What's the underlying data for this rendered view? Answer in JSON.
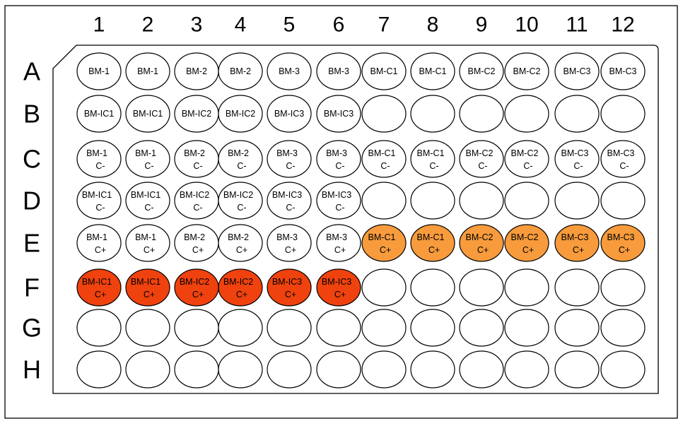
{
  "columns": [
    "1",
    "2",
    "3",
    "4",
    "5",
    "6",
    "7",
    "8",
    "9",
    "10",
    "11",
    "12"
  ],
  "rows": [
    "A",
    "B",
    "C",
    "D",
    "E",
    "F",
    "G",
    "H"
  ],
  "colors": {
    "empty": "#ffffff",
    "orange": "#f79b3c",
    "red": "#f0420e",
    "outline": "#000000"
  },
  "wells": [
    [
      {
        "l1": "BM-1",
        "l2": ""
      },
      {
        "l1": "BM-1",
        "l2": ""
      },
      {
        "l1": "BM-2",
        "l2": ""
      },
      {
        "l1": "BM-2",
        "l2": ""
      },
      {
        "l1": "BM-3",
        "l2": ""
      },
      {
        "l1": "BM-3",
        "l2": ""
      },
      {
        "l1": "BM-C1",
        "l2": ""
      },
      {
        "l1": "BM-C1",
        "l2": ""
      },
      {
        "l1": "BM-C2",
        "l2": ""
      },
      {
        "l1": "BM-C2",
        "l2": ""
      },
      {
        "l1": "BM-C3",
        "l2": ""
      },
      {
        "l1": "BM-C3",
        "l2": ""
      }
    ],
    [
      {
        "l1": "BM-IC1",
        "l2": ""
      },
      {
        "l1": "BM-IC1",
        "l2": ""
      },
      {
        "l1": "BM-IC2",
        "l2": ""
      },
      {
        "l1": "BM-IC2",
        "l2": ""
      },
      {
        "l1": "BM-IC3",
        "l2": ""
      },
      {
        "l1": "BM-IC3",
        "l2": ""
      },
      {
        "l1": "",
        "l2": ""
      },
      {
        "l1": "",
        "l2": ""
      },
      {
        "l1": "",
        "l2": ""
      },
      {
        "l1": "",
        "l2": ""
      },
      {
        "l1": "",
        "l2": ""
      },
      {
        "l1": "",
        "l2": ""
      }
    ],
    [
      {
        "l1": "BM-1",
        "l2": "C-"
      },
      {
        "l1": "BM-1",
        "l2": "C-"
      },
      {
        "l1": "BM-2",
        "l2": "C-"
      },
      {
        "l1": "BM-2",
        "l2": "C-"
      },
      {
        "l1": "BM-3",
        "l2": "C-"
      },
      {
        "l1": "BM-3",
        "l2": "C-"
      },
      {
        "l1": "BM-C1",
        "l2": "C-"
      },
      {
        "l1": "BM-C1",
        "l2": "C-"
      },
      {
        "l1": "BM-C2",
        "l2": "C-"
      },
      {
        "l1": "BM-C2",
        "l2": "C-"
      },
      {
        "l1": "BM-C3",
        "l2": "C-"
      },
      {
        "l1": "BM-C3",
        "l2": "C-"
      }
    ],
    [
      {
        "l1": "BM-IC1",
        "l2": "C-"
      },
      {
        "l1": "BM-IC1",
        "l2": "C-"
      },
      {
        "l1": "BM-IC2",
        "l2": "C-"
      },
      {
        "l1": "BM-IC2",
        "l2": "C-"
      },
      {
        "l1": "BM-IC3",
        "l2": "C-"
      },
      {
        "l1": "BM-IC3",
        "l2": "C-"
      },
      {
        "l1": "",
        "l2": ""
      },
      {
        "l1": "",
        "l2": ""
      },
      {
        "l1": "",
        "l2": ""
      },
      {
        "l1": "",
        "l2": ""
      },
      {
        "l1": "",
        "l2": ""
      },
      {
        "l1": "",
        "l2": ""
      }
    ],
    [
      {
        "l1": "BM-1",
        "l2": "C+"
      },
      {
        "l1": "BM-1",
        "l2": "C+"
      },
      {
        "l1": "BM-2",
        "l2": "C+"
      },
      {
        "l1": "BM-2",
        "l2": "C+"
      },
      {
        "l1": "BM-3",
        "l2": "C+"
      },
      {
        "l1": "BM-3",
        "l2": "C+"
      },
      {
        "l1": "BM-C1",
        "l2": "C+",
        "fill": "orange"
      },
      {
        "l1": "BM-C1",
        "l2": "C+",
        "fill": "orange"
      },
      {
        "l1": "BM-C2",
        "l2": "C+",
        "fill": "orange"
      },
      {
        "l1": "BM-C2",
        "l2": "C+",
        "fill": "orange"
      },
      {
        "l1": "BM-C3",
        "l2": "C+",
        "fill": "orange"
      },
      {
        "l1": "BM-C3",
        "l2": "C+",
        "fill": "orange"
      }
    ],
    [
      {
        "l1": "BM-IC1",
        "l2": "C+",
        "fill": "red"
      },
      {
        "l1": "BM-IC1",
        "l2": "C+",
        "fill": "red"
      },
      {
        "l1": "BM-IC2",
        "l2": "C+",
        "fill": "red"
      },
      {
        "l1": "BM-IC2",
        "l2": "C+",
        "fill": "red"
      },
      {
        "l1": "BM-IC3",
        "l2": "C+",
        "fill": "red"
      },
      {
        "l1": "BM-IC3",
        "l2": "C+",
        "fill": "red"
      },
      {
        "l1": "",
        "l2": ""
      },
      {
        "l1": "",
        "l2": ""
      },
      {
        "l1": "",
        "l2": ""
      },
      {
        "l1": "",
        "l2": ""
      },
      {
        "l1": "",
        "l2": ""
      },
      {
        "l1": "",
        "l2": ""
      }
    ],
    [
      {
        "l1": "",
        "l2": ""
      },
      {
        "l1": "",
        "l2": ""
      },
      {
        "l1": "",
        "l2": ""
      },
      {
        "l1": "",
        "l2": ""
      },
      {
        "l1": "",
        "l2": ""
      },
      {
        "l1": "",
        "l2": ""
      },
      {
        "l1": "",
        "l2": ""
      },
      {
        "l1": "",
        "l2": ""
      },
      {
        "l1": "",
        "l2": ""
      },
      {
        "l1": "",
        "l2": ""
      },
      {
        "l1": "",
        "l2": ""
      },
      {
        "l1": "",
        "l2": ""
      }
    ],
    [
      {
        "l1": "",
        "l2": ""
      },
      {
        "l1": "",
        "l2": ""
      },
      {
        "l1": "",
        "l2": ""
      },
      {
        "l1": "",
        "l2": ""
      },
      {
        "l1": "",
        "l2": ""
      },
      {
        "l1": "",
        "l2": ""
      },
      {
        "l1": "",
        "l2": ""
      },
      {
        "l1": "",
        "l2": ""
      },
      {
        "l1": "",
        "l2": ""
      },
      {
        "l1": "",
        "l2": ""
      },
      {
        "l1": "",
        "l2": ""
      },
      {
        "l1": "",
        "l2": ""
      }
    ]
  ]
}
